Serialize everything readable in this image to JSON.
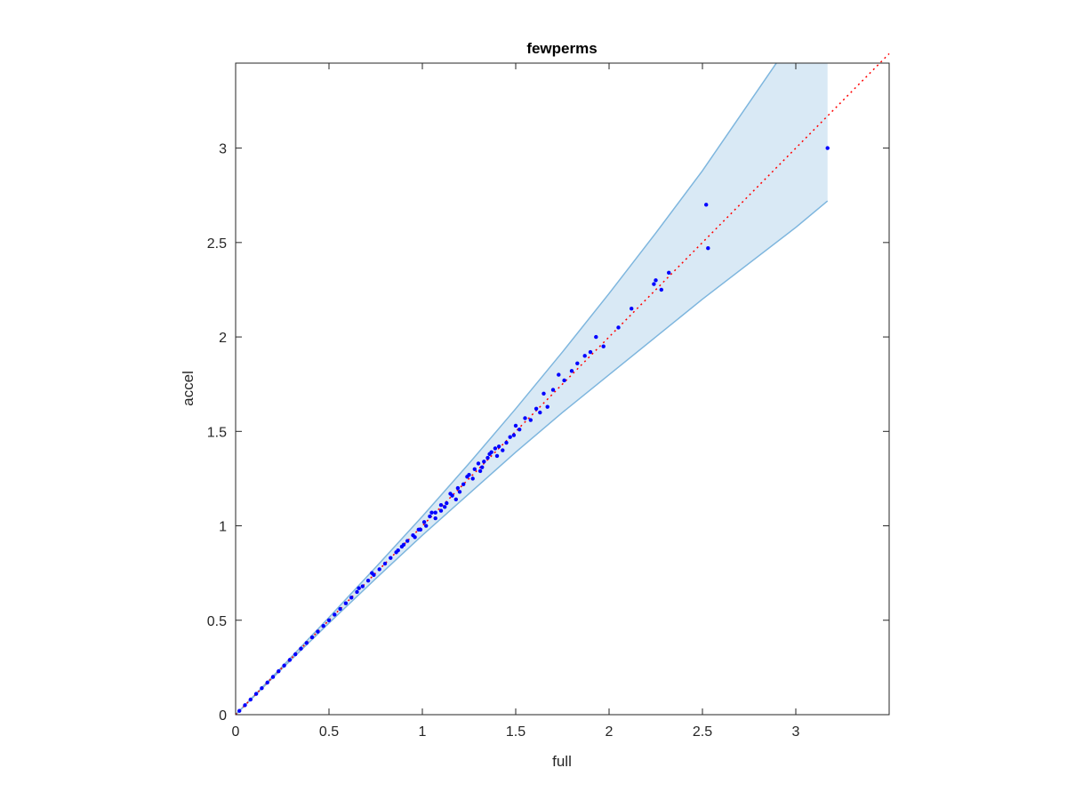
{
  "chart_data": {
    "type": "scatter",
    "title": "fewperms",
    "xlabel": "full",
    "ylabel": "accel",
    "xlim": [
      0,
      3.5
    ],
    "ylim": [
      0,
      3.45
    ],
    "xticks": [
      "0",
      "0.5",
      "1",
      "1.5",
      "2",
      "2.5",
      "3"
    ],
    "yticks": [
      "0",
      "0.5",
      "1",
      "1.5",
      "2",
      "2.5",
      "3"
    ],
    "grid": false,
    "reference_line": {
      "style": "dotted",
      "color": "#ff0000",
      "from": [
        0,
        0
      ],
      "to": [
        3.5,
        3.5
      ]
    },
    "band": {
      "color": "#cfe3f2",
      "edge_color": "#7eb6de",
      "x": [
        0,
        0.25,
        0.5,
        0.75,
        1.0,
        1.25,
        1.5,
        1.75,
        2.0,
        2.25,
        2.5,
        3.0,
        3.17
      ],
      "upper": [
        0,
        0.255,
        0.515,
        0.78,
        1.05,
        1.33,
        1.62,
        1.92,
        2.23,
        2.55,
        2.88,
        3.6,
        3.75
      ],
      "lower": [
        0,
        0.245,
        0.485,
        0.72,
        0.95,
        1.17,
        1.39,
        1.6,
        1.8,
        2.0,
        2.2,
        2.58,
        2.72
      ]
    },
    "series": [
      {
        "color": "#0000ff",
        "points": [
          [
            0.02,
            0.02
          ],
          [
            0.05,
            0.05
          ],
          [
            0.08,
            0.08
          ],
          [
            0.11,
            0.11
          ],
          [
            0.14,
            0.14
          ],
          [
            0.17,
            0.17
          ],
          [
            0.2,
            0.2
          ],
          [
            0.23,
            0.23
          ],
          [
            0.26,
            0.26
          ],
          [
            0.29,
            0.29
          ],
          [
            0.32,
            0.32
          ],
          [
            0.35,
            0.35
          ],
          [
            0.38,
            0.38
          ],
          [
            0.41,
            0.41
          ],
          [
            0.44,
            0.44
          ],
          [
            0.47,
            0.47
          ],
          [
            0.5,
            0.5
          ],
          [
            0.53,
            0.53
          ],
          [
            0.56,
            0.56
          ],
          [
            0.59,
            0.59
          ],
          [
            0.62,
            0.62
          ],
          [
            0.65,
            0.65
          ],
          [
            0.68,
            0.68
          ],
          [
            0.71,
            0.71
          ],
          [
            0.74,
            0.74
          ],
          [
            0.77,
            0.77
          ],
          [
            0.8,
            0.8
          ],
          [
            0.83,
            0.83
          ],
          [
            0.86,
            0.86
          ],
          [
            0.89,
            0.89
          ],
          [
            0.92,
            0.92
          ],
          [
            0.95,
            0.95
          ],
          [
            0.98,
            0.98
          ],
          [
            1.01,
            1.02
          ],
          [
            1.04,
            1.05
          ],
          [
            1.07,
            1.07
          ],
          [
            1.1,
            1.11
          ],
          [
            1.13,
            1.12
          ],
          [
            1.16,
            1.16
          ],
          [
            1.19,
            1.2
          ],
          [
            0.9,
            0.9
          ],
          [
            0.96,
            0.94
          ],
          [
            1.02,
            1.0
          ],
          [
            1.05,
            1.07
          ],
          [
            1.1,
            1.08
          ],
          [
            1.15,
            1.17
          ],
          [
            1.2,
            1.18
          ],
          [
            1.24,
            1.26
          ],
          [
            1.27,
            1.25
          ],
          [
            1.3,
            1.33
          ],
          [
            1.22,
            1.22
          ],
          [
            1.25,
            1.27
          ],
          [
            1.28,
            1.3
          ],
          [
            1.31,
            1.29
          ],
          [
            1.33,
            1.34
          ],
          [
            1.35,
            1.36
          ],
          [
            1.37,
            1.39
          ],
          [
            1.39,
            1.41
          ],
          [
            1.41,
            1.42
          ],
          [
            1.43,
            1.4
          ],
          [
            1.45,
            1.44
          ],
          [
            1.47,
            1.47
          ],
          [
            1.49,
            1.48
          ],
          [
            1.5,
            1.53
          ],
          [
            1.52,
            1.51
          ],
          [
            1.55,
            1.57
          ],
          [
            1.58,
            1.56
          ],
          [
            1.61,
            1.62
          ],
          [
            1.63,
            1.6
          ],
          [
            1.65,
            1.7
          ],
          [
            1.67,
            1.63
          ],
          [
            1.7,
            1.72
          ],
          [
            1.73,
            1.8
          ],
          [
            1.76,
            1.77
          ],
          [
            1.8,
            1.82
          ],
          [
            1.83,
            1.86
          ],
          [
            1.87,
            1.9
          ],
          [
            1.9,
            1.92
          ],
          [
            1.93,
            2.0
          ],
          [
            1.97,
            1.95
          ],
          [
            2.05,
            2.05
          ],
          [
            2.12,
            2.15
          ],
          [
            2.24,
            2.28
          ],
          [
            2.25,
            2.3
          ],
          [
            2.28,
            2.25
          ],
          [
            2.32,
            2.34
          ],
          [
            2.52,
            2.7
          ],
          [
            2.53,
            2.47
          ],
          [
            3.17,
            3.0
          ],
          [
            1.36,
            1.38
          ],
          [
            1.4,
            1.37
          ],
          [
            1.32,
            1.31
          ],
          [
            1.18,
            1.14
          ],
          [
            1.12,
            1.1
          ],
          [
            1.07,
            1.04
          ],
          [
            0.99,
            0.98
          ],
          [
            0.87,
            0.87
          ],
          [
            0.73,
            0.75
          ],
          [
            0.66,
            0.67
          ]
        ]
      }
    ]
  }
}
